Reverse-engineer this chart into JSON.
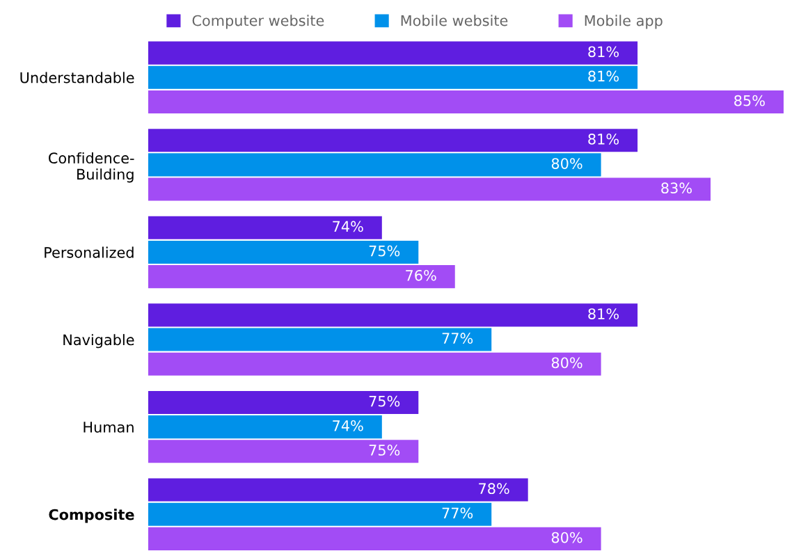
{
  "chart_data": {
    "type": "bar",
    "orientation": "horizontal",
    "categories": [
      "Understandable",
      "Confidence-\nBuilding",
      "Personalized",
      "Navigable",
      "Human",
      "Composite"
    ],
    "series": [
      {
        "name": "Computer website",
        "color": "#5f1ee0",
        "values": [
          81,
          81,
          74,
          81,
          75,
          78
        ],
        "value_labels": [
          "81%",
          "81%",
          "74%",
          "81%",
          "75%",
          "78%"
        ]
      },
      {
        "name": "Mobile website",
        "color": "#0091ea",
        "values": [
          81,
          80,
          75,
          77,
          74,
          77
        ],
        "value_labels": [
          "81%",
          "80%",
          "75%",
          "77%",
          "74%",
          "77%"
        ]
      },
      {
        "name": "Mobile app",
        "color": "#a24cf5",
        "values": [
          85,
          83,
          76,
          80,
          75,
          80
        ],
        "value_labels": [
          "85%",
          "83%",
          "76%",
          "80%",
          "75%",
          "80%"
        ]
      }
    ],
    "xlim": [
      67.6,
      85
    ],
    "tick_labels": "y",
    "grid": false,
    "legend": "top"
  }
}
